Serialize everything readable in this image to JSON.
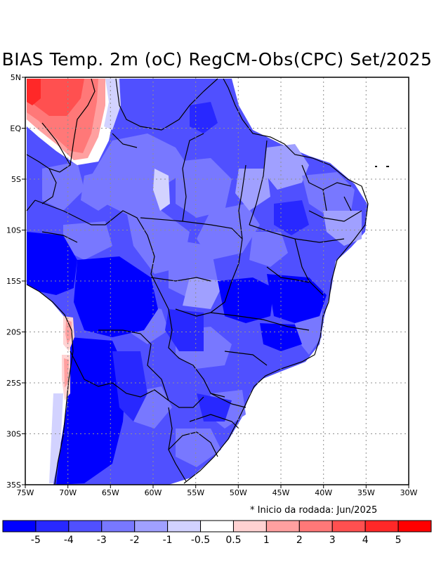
{
  "title": "BIAS Temp. 2m (oC) RegCM-Obs(CPC) Set/2025",
  "note": "* Inicio da rodada: Jun/2025",
  "map": {
    "lon_ticks": [
      "75W",
      "70W",
      "65W",
      "60W",
      "55W",
      "50W",
      "45W",
      "40W",
      "35W",
      "30W"
    ],
    "lat_ticks": [
      "5N",
      "EQ",
      "5S",
      "10S",
      "15S",
      "20S",
      "25S",
      "30S",
      "35S"
    ],
    "lon_range": [
      -75,
      -30
    ],
    "lat_range": [
      -35,
      5
    ],
    "grid": true
  },
  "colorbar": {
    "labels": [
      "-5",
      "-4",
      "-3",
      "-2",
      "-1",
      "-0.5",
      "0.5",
      "1",
      "2",
      "3",
      "4",
      "5"
    ],
    "colors": [
      "#0000ff",
      "#2828ff",
      "#5050ff",
      "#7878ff",
      "#a0a0ff",
      "#d2d2ff",
      "#ffffff",
      "#ffd2d2",
      "#ffa0a0",
      "#ff7878",
      "#ff5050",
      "#ff2828",
      "#ff0000"
    ]
  }
}
